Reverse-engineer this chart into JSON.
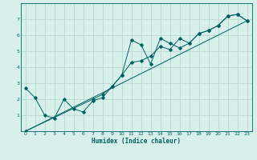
{
  "xlabel": "Humidex (Indice chaleur)",
  "bg_color": "#d8f0ec",
  "grid_color": "#b8d8d0",
  "line_color": "#006060",
  "xlim": [
    -0.5,
    23.5
  ],
  "ylim": [
    0,
    8
  ],
  "xticks": [
    0,
    1,
    2,
    3,
    4,
    5,
    6,
    7,
    8,
    9,
    10,
    11,
    12,
    13,
    14,
    15,
    16,
    17,
    18,
    19,
    20,
    21,
    22,
    23
  ],
  "yticks": [
    1,
    2,
    3,
    4,
    5,
    6,
    7
  ],
  "line1_x": [
    0,
    1,
    2,
    3,
    4,
    5,
    6,
    7,
    8,
    9,
    10,
    11,
    12,
    13,
    14,
    15,
    16,
    17,
    18,
    19,
    20,
    21,
    22,
    23
  ],
  "line1_y": [
    2.7,
    2.1,
    1.0,
    0.8,
    2.0,
    1.4,
    1.2,
    1.9,
    2.1,
    2.8,
    3.5,
    5.7,
    5.4,
    4.2,
    5.8,
    5.5,
    5.2,
    5.5,
    6.1,
    6.3,
    6.6,
    7.2,
    7.3,
    6.9
  ],
  "line2_x": [
    0,
    7,
    8,
    9,
    10,
    11,
    12,
    13,
    14,
    15,
    16,
    17,
    18,
    19,
    20,
    21,
    22,
    23
  ],
  "line2_y": [
    0.0,
    2.0,
    2.3,
    2.8,
    3.5,
    4.3,
    4.4,
    4.7,
    5.3,
    5.1,
    5.8,
    5.5,
    6.1,
    6.3,
    6.6,
    7.2,
    7.3,
    6.9
  ],
  "line3_x": [
    0,
    23
  ],
  "line3_y": [
    0.0,
    6.9
  ]
}
